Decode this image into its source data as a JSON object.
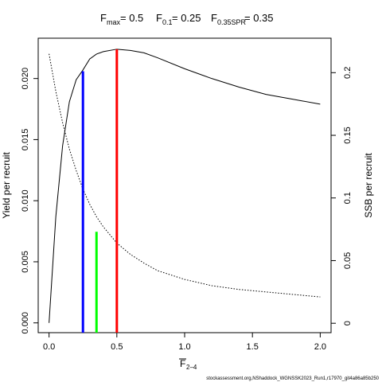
{
  "chart_data": {
    "type": "line",
    "title": {
      "fmax_sub": "max",
      "fmax_value": "= 0.5",
      "f01_sub": "0.1",
      "f01_value": "= 0.25",
      "fspr_sub": "0.35SPR",
      "fspr_value": "= 0.35"
    },
    "xlabel_base": "F",
    "xlabel_sub": "2–4",
    "ylabel_left": "Yield per recruit",
    "ylabel_right": "SSB per recruit",
    "xlim": [
      -0.08,
      2.08
    ],
    "ylim_left": [
      -0.0008,
      0.0233
    ],
    "ylim_right": [
      -0.0075,
      0.2275
    ],
    "x_ticks": [
      {
        "value": 0.0,
        "label": "0.0"
      },
      {
        "value": 0.5,
        "label": "0.5"
      },
      {
        "value": 1.0,
        "label": "1.0"
      },
      {
        "value": 1.5,
        "label": "1.5"
      },
      {
        "value": 2.0,
        "label": "2.0"
      }
    ],
    "y_left_ticks": [
      {
        "value": 0.0,
        "label": "0.000"
      },
      {
        "value": 0.005,
        "label": "0.005"
      },
      {
        "value": 0.01,
        "label": "0.010"
      },
      {
        "value": 0.015,
        "label": "0.015"
      },
      {
        "value": 0.02,
        "label": "0.020"
      }
    ],
    "y_right_ticks": [
      {
        "value": 0.0,
        "label": "0"
      },
      {
        "value": 0.05,
        "label": "0.05"
      },
      {
        "value": 0.1,
        "label": "0.1"
      },
      {
        "value": 0.15,
        "label": "0.15"
      },
      {
        "value": 0.2,
        "label": "0.2"
      }
    ],
    "series": [
      {
        "axis": "left",
        "style": "solid",
        "x": [
          0,
          0.05,
          0.1,
          0.15,
          0.2,
          0.25,
          0.3,
          0.35,
          0.4,
          0.5,
          0.6,
          0.7,
          0.8,
          1.0,
          1.2,
          1.4,
          1.6,
          1.8,
          2.0
        ],
        "y": [
          0,
          0.0087,
          0.0145,
          0.0181,
          0.0199,
          0.0207,
          0.0216,
          0.022,
          0.0222,
          0.0224,
          0.0223,
          0.0221,
          0.0217,
          0.0208,
          0.02,
          0.0193,
          0.0187,
          0.0183,
          0.0179
        ]
      },
      {
        "axis": "right",
        "style": "dotted",
        "x": [
          0,
          0.05,
          0.1,
          0.15,
          0.2,
          0.25,
          0.3,
          0.35,
          0.4,
          0.5,
          0.6,
          0.7,
          0.8,
          1.0,
          1.2,
          1.4,
          1.6,
          1.8,
          2.0
        ],
        "y": [
          0.215,
          0.185,
          0.16,
          0.139,
          0.122,
          0.107,
          0.095,
          0.085,
          0.077,
          0.064,
          0.055,
          0.048,
          0.042,
          0.035,
          0.03,
          0.027,
          0.025,
          0.023,
          0.021
        ]
      }
    ],
    "reference_lines": [
      {
        "x": 0.25,
        "axis": "left",
        "y": 0.0206,
        "color": "#0000ff"
      },
      {
        "x": 0.35,
        "axis": "right",
        "y": 0.073,
        "color": "#00ff00"
      },
      {
        "x": 0.5,
        "axis": "left",
        "y": 0.0224,
        "color": "#ff0000"
      }
    ]
  },
  "footer": "stockassessment.org,NShaddock_WGNSSK2023_Run1,r17970_git4a86a85b250"
}
